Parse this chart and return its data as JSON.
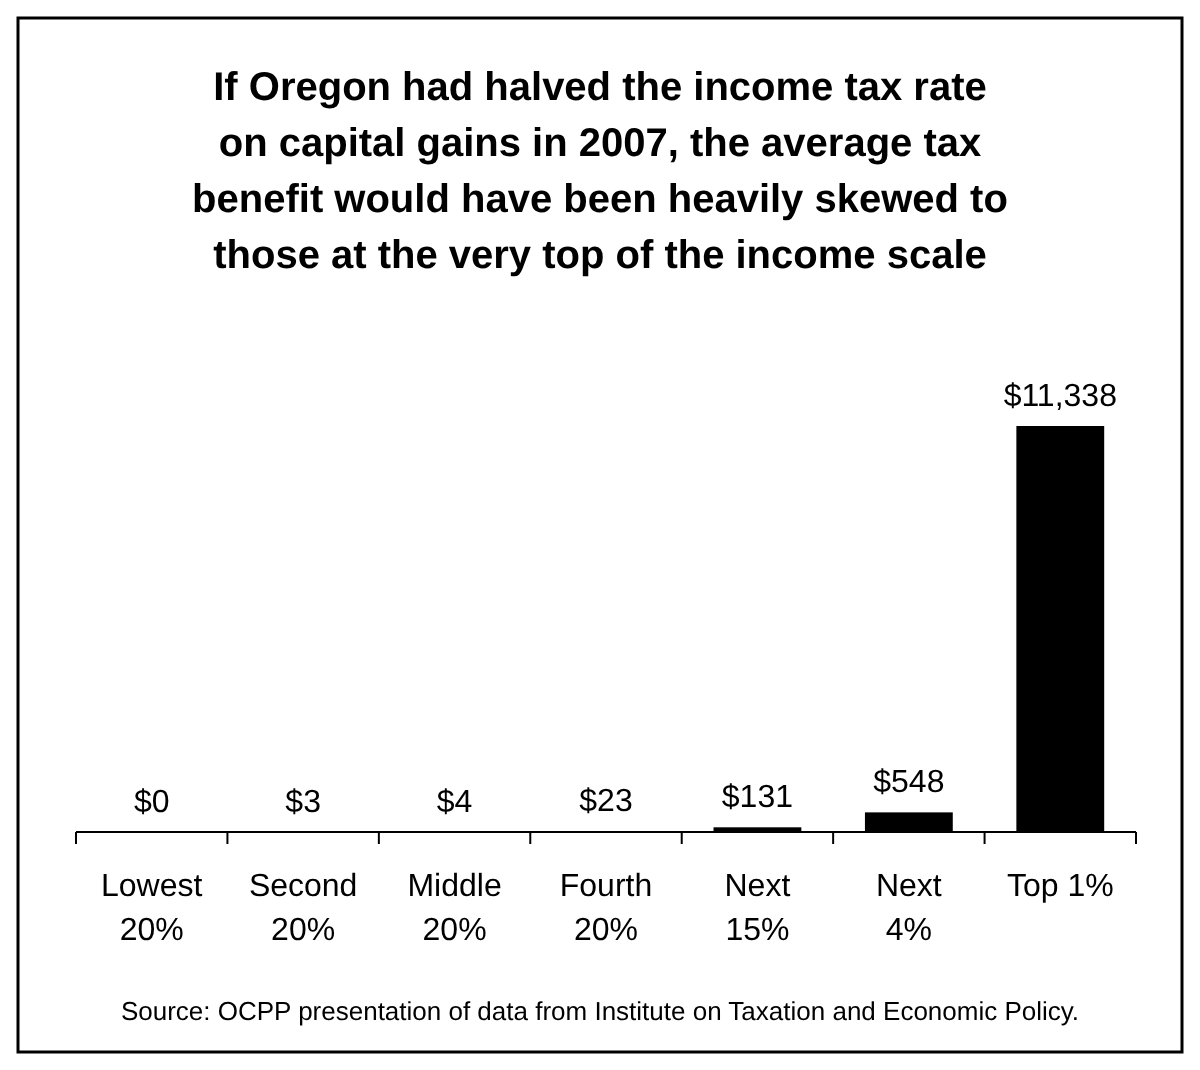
{
  "chart_data": {
    "type": "bar",
    "title": "If Oregon had halved the income tax rate\non capital gains in 2007, the average tax\nbenefit would have been heavily skewed to\nthose at the very top of the income scale",
    "categories": [
      "Lowest\n20%",
      "Second\n20%",
      "Middle\n20%",
      "Fourth\n20%",
      "Next\n15%",
      "Next\n4%",
      "Top 1%"
    ],
    "values": [
      0,
      3,
      4,
      23,
      131,
      548,
      11338
    ],
    "value_labels": [
      "$0",
      "$3",
      "$4",
      "$23",
      "$131",
      "$548",
      "$11,338"
    ],
    "color": "#000000",
    "annotations": [
      "Source: OCPP presentation of data from Institute on Taxation and Economic Policy."
    ]
  }
}
